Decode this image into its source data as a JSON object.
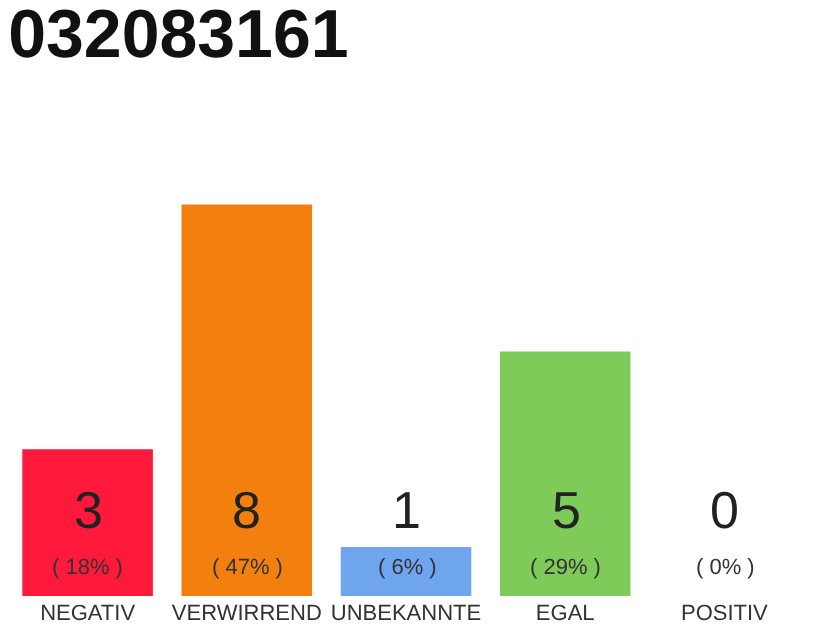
{
  "chart_data": {
    "type": "bar",
    "title": "032083161",
    "categories": [
      "NEGATIV",
      "VERWIRREND",
      "UNBEKANNTE",
      "EGAL",
      "POSITIV"
    ],
    "values": [
      3,
      8,
      1,
      5,
      0
    ],
    "colors": [
      "#ff1a3c",
      "#f27f0e",
      "#6fa4ee",
      "#7ecb5a",
      "#c8c8c8"
    ],
    "value_labels": [
      "3\n( 18% )",
      "8\n( 47% )",
      "1\n( 6% )",
      "5\n( 29% )",
      "0\n( 0% )"
    ],
    "tick_labels": "x",
    "grid": false,
    "legend": false
  }
}
